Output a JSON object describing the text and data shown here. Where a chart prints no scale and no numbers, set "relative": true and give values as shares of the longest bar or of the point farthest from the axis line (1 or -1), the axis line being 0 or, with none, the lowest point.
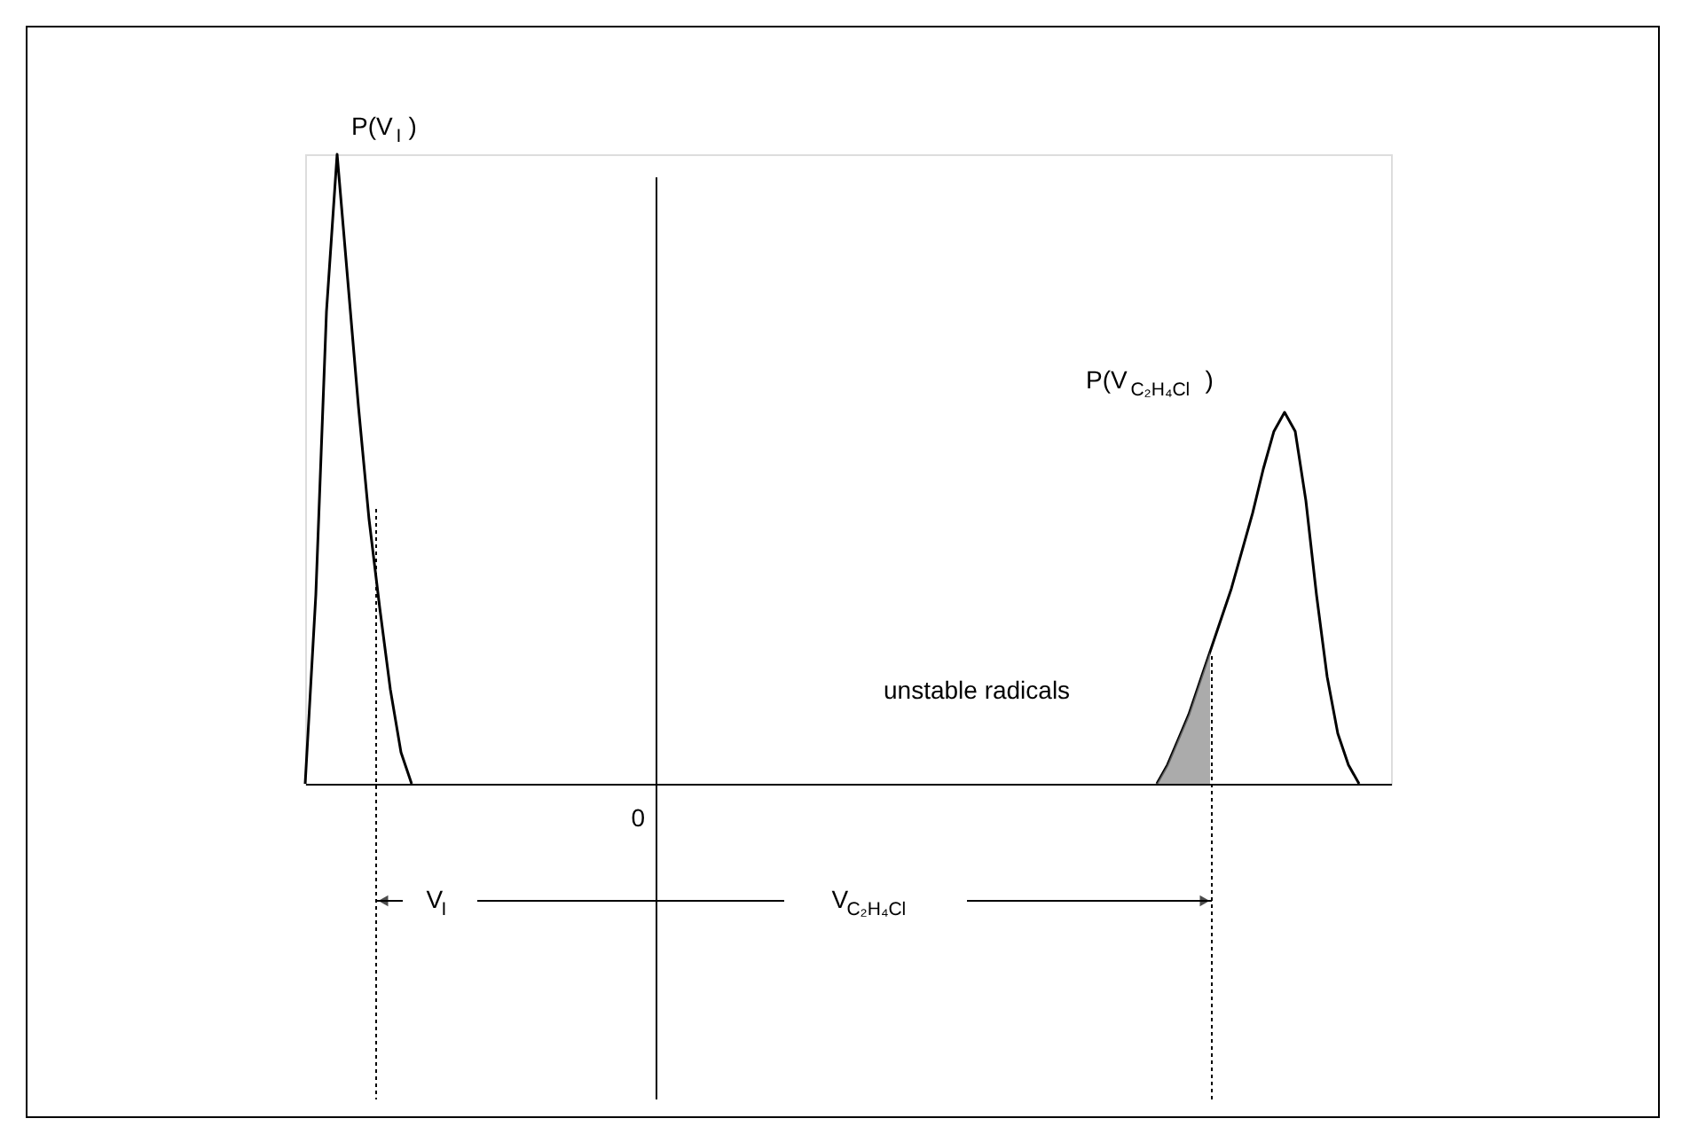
{
  "chart_data": {
    "type": "line",
    "relative": true,
    "grid": false,
    "legend": false,
    "categories": [
      null,
      null,
      null,
      null,
      null,
      null,
      null,
      null,
      null,
      null,
      null,
      null,
      null,
      null,
      null,
      null,
      null,
      null,
      null,
      null,
      null,
      null,
      null,
      null,
      null,
      null,
      null,
      null,
      null,
      null,
      null,
      null,
      null,
      null,
      null,
      null,
      null,
      null,
      null,
      null,
      null,
      null,
      null,
      null,
      null,
      null,
      null,
      null,
      null,
      null,
      null,
      null,
      null,
      null,
      null,
      null,
      null,
      null,
      null,
      null,
      null,
      null,
      null,
      null,
      null,
      null,
      null,
      null,
      null,
      null,
      null,
      null,
      null,
      null,
      null,
      null,
      null,
      null,
      null,
      null,
      null,
      null,
      null,
      null,
      null,
      null,
      null,
      null,
      null,
      null,
      null,
      null,
      null,
      null,
      null,
      null,
      null,
      null,
      null,
      null,
      null,
      null,
      null
    ],
    "series": [
      {
        "name": "P(V$_{I}$)",
        "color": "#000000",
        "values": [
          0,
          0.3,
          0.75,
          1,
          0.8,
          0.6,
          0.42,
          0.28,
          0.15,
          0.05,
          0,
          null,
          null,
          null,
          null,
          null,
          null,
          null,
          null,
          null,
          null,
          null,
          null,
          null,
          null,
          null,
          null,
          null,
          null,
          null,
          null,
          null,
          null,
          null,
          null,
          null,
          null,
          null,
          null,
          null,
          null,
          null,
          null,
          null,
          null,
          null,
          null,
          null,
          null,
          null,
          null,
          null,
          null,
          null,
          null,
          null,
          null,
          null,
          null,
          null,
          null,
          null,
          null,
          null,
          null,
          null,
          null,
          null,
          null,
          null,
          null,
          null,
          null,
          null,
          null,
          null,
          null,
          null,
          null,
          null,
          null,
          null,
          null,
          null,
          null,
          null,
          null,
          null,
          null,
          null,
          null,
          null,
          null,
          null,
          null,
          null,
          null,
          null,
          null,
          null,
          null,
          null,
          null
        ]
      },
      {
        "name": "P(V$_{C₂H₄Cl}$)",
        "color": "#000000",
        "values": [
          null,
          null,
          null,
          null,
          null,
          null,
          null,
          null,
          null,
          null,
          null,
          null,
          null,
          null,
          null,
          null,
          null,
          null,
          null,
          null,
          null,
          null,
          null,
          null,
          null,
          null,
          null,
          null,
          null,
          null,
          null,
          null,
          null,
          null,
          null,
          null,
          null,
          null,
          null,
          null,
          null,
          null,
          null,
          null,
          null,
          null,
          null,
          null,
          null,
          null,
          null,
          null,
          null,
          null,
          null,
          null,
          null,
          null,
          null,
          null,
          null,
          null,
          null,
          null,
          null,
          null,
          null,
          null,
          null,
          null,
          null,
          null,
          null,
          null,
          null,
          null,
          null,
          null,
          null,
          null,
          0,
          0.03,
          0.07,
          0.11,
          0.16,
          0.21,
          0.26,
          0.31,
          0.37,
          0.43,
          0.5,
          0.56,
          0.59,
          0.56,
          0.45,
          0.3,
          0.17,
          0.08,
          0.03,
          0,
          null,
          null,
          null
        ]
      },
      {
        "type": "area",
        "color": "#888888",
        "values": [
          null,
          null,
          null,
          null,
          null,
          null,
          null,
          null,
          null,
          null,
          null,
          null,
          null,
          null,
          null,
          null,
          null,
          null,
          null,
          null,
          null,
          null,
          null,
          null,
          null,
          null,
          null,
          null,
          null,
          null,
          null,
          null,
          null,
          null,
          null,
          null,
          null,
          null,
          null,
          null,
          null,
          null,
          null,
          null,
          null,
          null,
          null,
          null,
          null,
          null,
          null,
          null,
          null,
          null,
          null,
          null,
          null,
          null,
          null,
          null,
          null,
          null,
          null,
          null,
          null,
          null,
          null,
          null,
          null,
          null,
          null,
          null,
          null,
          null,
          null,
          null,
          null,
          null,
          null,
          null,
          0,
          0.03,
          0.07,
          0.11,
          0.16,
          0.21,
          null,
          null,
          null,
          null,
          null,
          null,
          null,
          null,
          null,
          null,
          null,
          null,
          null,
          null,
          null,
          null,
          null
        ]
      }
    ],
    "annotations": [
      "0",
      "V$_{I}$",
      "V$_{C₂H₄Cl}$",
      "unstable radicals"
    ]
  }
}
